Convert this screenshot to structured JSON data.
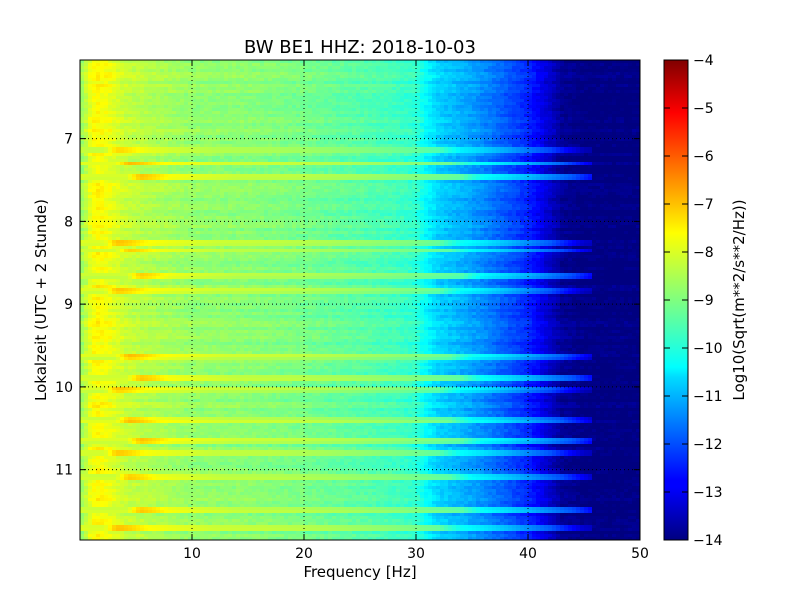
{
  "chart_data": {
    "type": "heatmap",
    "title": "BW BE1 HHZ: 2018-10-03",
    "xlabel": "Frequency [Hz]",
    "ylabel": "Lokalzeit (UTC + 2 Stunde)",
    "xlim": [
      0,
      50
    ],
    "ylim": [
      11.85,
      6.05
    ],
    "y_axis_inverted": true,
    "xticks": [
      10,
      20,
      30,
      40,
      50
    ],
    "yticks": [
      7,
      8,
      9,
      10,
      11
    ],
    "grid": true,
    "grid_style": "dotted",
    "colormap": "jet",
    "colorbar": {
      "label": "Log10(Sqrt(m**2/s**2/Hz))",
      "range": [
        -14,
        -4
      ],
      "ticks": [
        -4,
        -5,
        -6,
        -7,
        -8,
        -9,
        -10,
        -11,
        -12,
        -13,
        -14
      ]
    },
    "spectral_profile": {
      "frequency_hz": [
        0,
        0.5,
        1,
        1.5,
        2.5,
        4,
        6,
        10,
        15,
        20,
        25,
        28,
        30,
        31,
        32,
        34,
        36,
        38,
        40,
        42,
        43,
        45,
        50
      ],
      "log10_amplitude": [
        -8.8,
        -8.4,
        -7.9,
        -7.7,
        -7.9,
        -8.3,
        -8.5,
        -8.8,
        -8.9,
        -9.1,
        -9.4,
        -9.6,
        -9.8,
        -10.3,
        -10.7,
        -11.0,
        -11.4,
        -11.9,
        -12.4,
        -13.3,
        -13.8,
        -14,
        -14
      ]
    },
    "time_range_hours": [
      6.05,
      11.85
    ],
    "noisy_time_bands_hours": [
      7.15,
      7.3,
      7.45,
      8.25,
      8.35,
      8.65,
      8.85,
      9.65,
      9.9,
      10.05,
      10.4,
      10.65,
      10.8,
      11.1,
      11.5,
      11.7
    ]
  }
}
